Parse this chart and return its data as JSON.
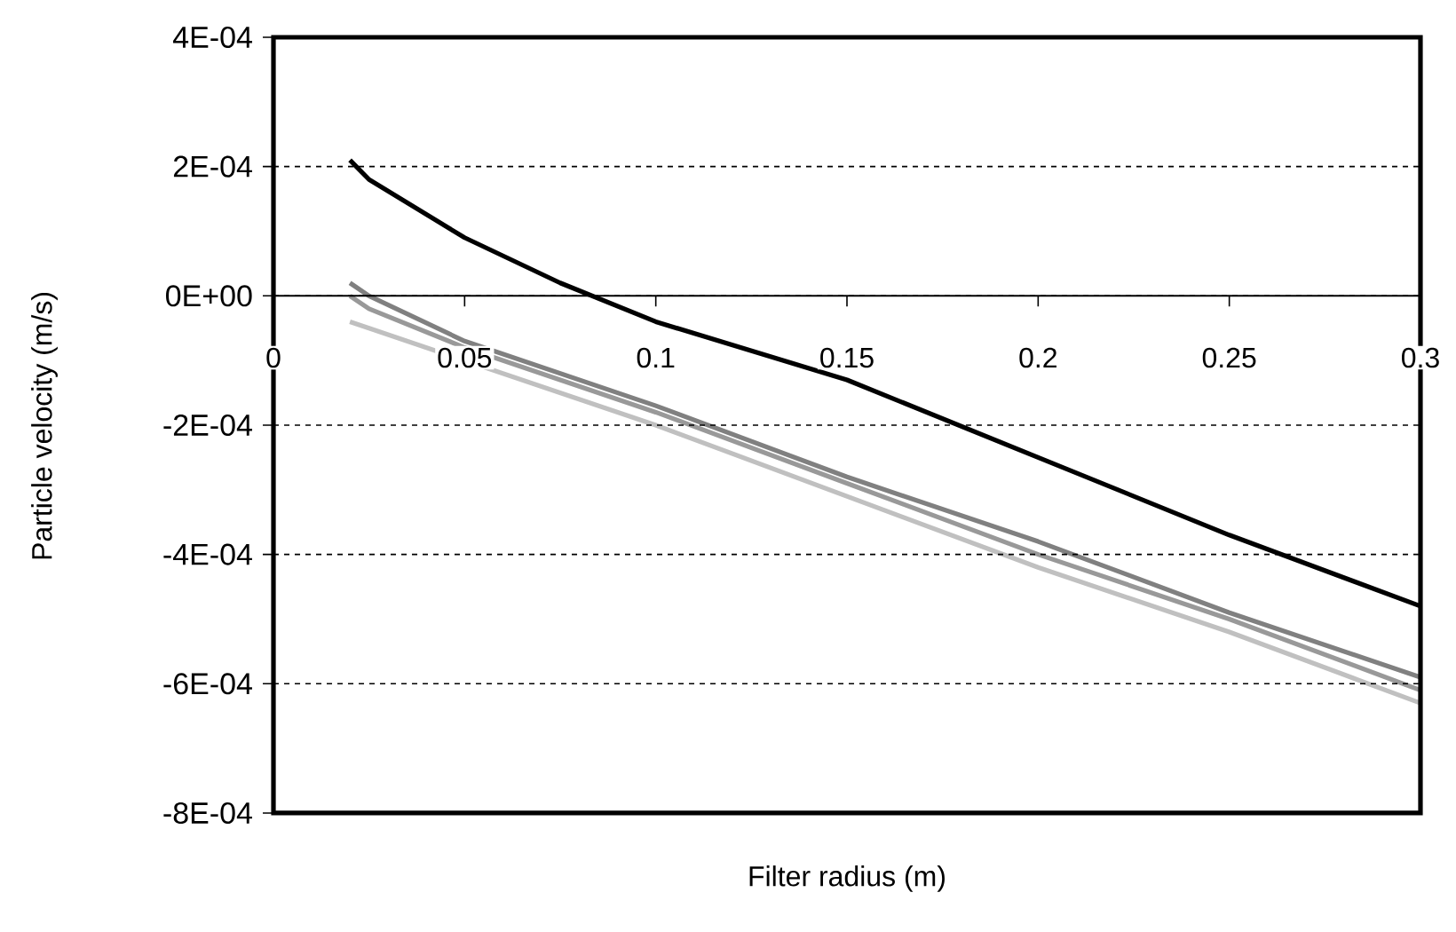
{
  "chart_data": {
    "type": "line",
    "xlabel": "Filter radius (m)",
    "ylabel": "Particle velocity (m/s)",
    "xlim": [
      0,
      0.3
    ],
    "xticks": [
      0,
      0.05,
      0.1,
      0.15,
      0.2,
      0.25,
      0.3
    ],
    "ylim": [
      -0.0008,
      0.0004
    ],
    "yticks": [
      {
        "value": -0.0008,
        "label": "-8E-04"
      },
      {
        "value": -0.0006,
        "label": "-6E-04"
      },
      {
        "value": -0.0004,
        "label": "-4E-04"
      },
      {
        "value": -0.0002,
        "label": "-2E-04"
      },
      {
        "value": 0,
        "label": "0E+00"
      },
      {
        "value": 0.0002,
        "label": "2E-04"
      },
      {
        "value": 0.0004,
        "label": "4E-04"
      }
    ],
    "grid": "y",
    "line_style": "solid",
    "series": [
      {
        "color": "#000000",
        "x": [
          0.02,
          0.025,
          0.05,
          0.075,
          0.1,
          0.15,
          0.2,
          0.25,
          0.3
        ],
        "values": [
          0.00021,
          0.00018,
          9e-05,
          2e-05,
          -4e-05,
          -0.00013,
          -0.00025,
          -0.00037,
          -0.00048
        ]
      },
      {
        "color": "#808080",
        "x": [
          0.02,
          0.025,
          0.05,
          0.1,
          0.15,
          0.2,
          0.25,
          0.3
        ],
        "values": [
          2e-05,
          0,
          -7e-05,
          -0.00017,
          -0.00028,
          -0.00038,
          -0.00049,
          -0.00059
        ]
      },
      {
        "color": "#999999",
        "x": [
          0.02,
          0.025,
          0.05,
          0.1,
          0.15,
          0.2,
          0.25,
          0.3
        ],
        "values": [
          0,
          -2e-05,
          -8e-05,
          -0.00018,
          -0.00029,
          -0.0004,
          -0.0005,
          -0.00061
        ]
      },
      {
        "color": "#c0c0c0",
        "x": [
          0.02,
          0.025,
          0.05,
          0.1,
          0.15,
          0.2,
          0.25,
          0.3
        ],
        "values": [
          -4e-05,
          -5e-05,
          -0.0001,
          -0.0002,
          -0.00031,
          -0.00042,
          -0.00052,
          -0.00063
        ]
      }
    ]
  }
}
